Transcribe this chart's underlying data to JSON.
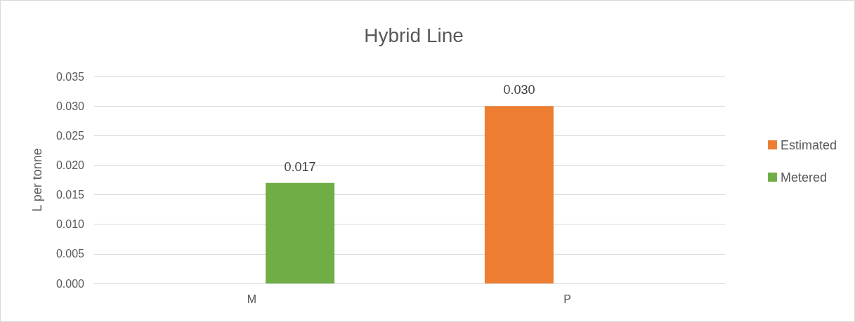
{
  "chart_data": {
    "type": "bar",
    "title": "Hybrid Line",
    "ylabel": "L per tonne",
    "categories": [
      "M",
      "P"
    ],
    "series": [
      {
        "name": "Estimated",
        "color": "#ed7d31",
        "values": [
          null,
          0.03
        ],
        "value_labels": [
          null,
          "0.030"
        ]
      },
      {
        "name": "Metered",
        "color": "#70ad47",
        "values": [
          0.017,
          null
        ],
        "value_labels": [
          "0.017",
          null
        ]
      }
    ],
    "ylim": [
      0,
      0.035
    ],
    "yticks": [
      {
        "value": 0,
        "label": "0.000"
      },
      {
        "value": 0.005,
        "label": "0.005"
      },
      {
        "value": 0.01,
        "label": "0.010"
      },
      {
        "value": 0.015,
        "label": "0.015"
      },
      {
        "value": 0.02,
        "label": "0.020"
      },
      {
        "value": 0.025,
        "label": "0.025"
      },
      {
        "value": 0.03,
        "label": "0.030"
      },
      {
        "value": 0.035,
        "label": "0.035"
      }
    ],
    "grid": "y",
    "legend": "right"
  }
}
